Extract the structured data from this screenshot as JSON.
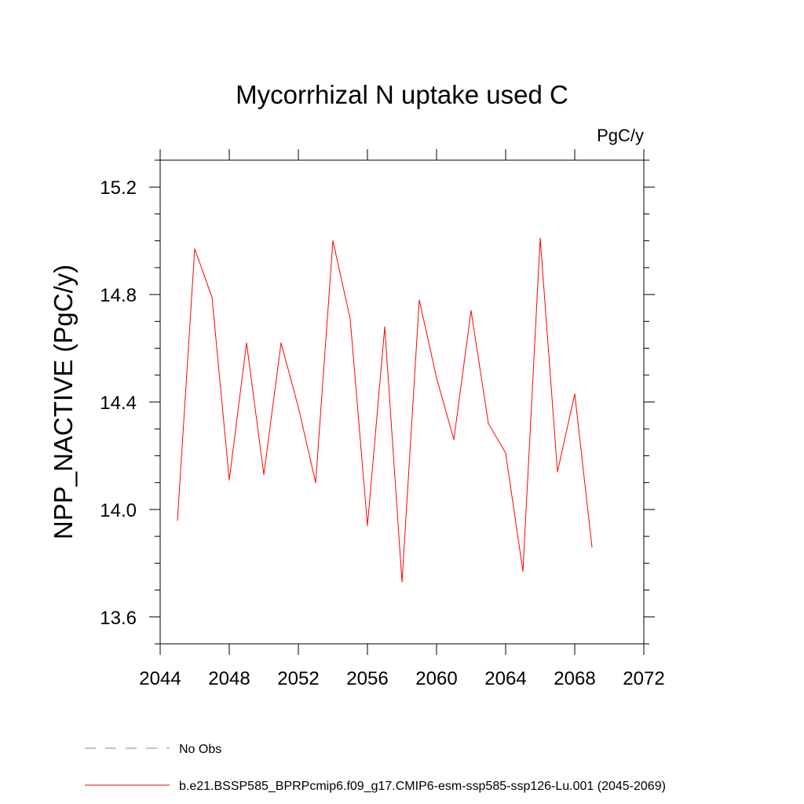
{
  "chart_data": {
    "type": "line",
    "title": "Mycorrhizal N uptake used C",
    "units_label": "PgC/y",
    "xlabel": "",
    "ylabel": "NPP_NACTIVE  (PgC/y)",
    "xlim": [
      2044,
      2072
    ],
    "ylim": [
      13.5,
      15.3
    ],
    "x_ticks": [
      "2044",
      "2048",
      "2052",
      "2056",
      "2060",
      "2064",
      "2068",
      "2072"
    ],
    "y_ticks": [
      "13.6",
      "14.0",
      "14.4",
      "14.8",
      "15.2"
    ],
    "grid": false,
    "legend_position": "bottom",
    "series": [
      {
        "name": "b.e21.BSSP585_BPRPcmip6.f09_g17.CMIP6-esm-ssp585-ssp126-Lu.001 (2045-2069)",
        "color": "#ff0000",
        "line_style": "solid",
        "x": [
          2045,
          2046,
          2047,
          2048,
          2049,
          2050,
          2051,
          2052,
          2053,
          2054,
          2055,
          2056,
          2057,
          2058,
          2059,
          2060,
          2061,
          2062,
          2063,
          2064,
          2065,
          2066,
          2067,
          2068,
          2069
        ],
        "y": [
          13.96,
          14.97,
          14.79,
          14.11,
          14.62,
          14.13,
          14.62,
          14.38,
          14.1,
          15.0,
          14.71,
          13.94,
          14.68,
          13.73,
          14.78,
          14.49,
          14.26,
          14.74,
          14.32,
          14.21,
          13.77,
          15.01,
          14.14,
          14.43,
          13.86
        ]
      }
    ],
    "legend": [
      {
        "label": "No Obs",
        "color": "#8080c0",
        "line_style": "dashed"
      },
      {
        "label": "b.e21.BSSP585_BPRPcmip6.f09_g17.CMIP6-esm-ssp585-ssp126-Lu.001 (2045-2069)",
        "color": "#ff0000",
        "line_style": "solid"
      }
    ]
  }
}
